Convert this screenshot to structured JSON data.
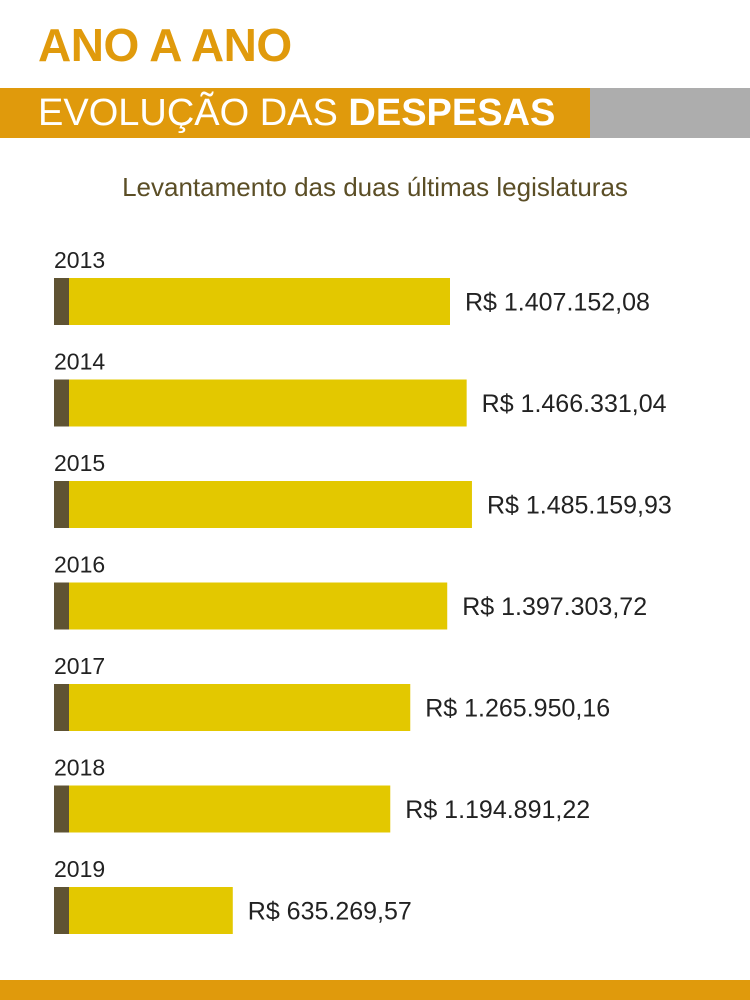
{
  "header": {
    "headline": "ANO A ANO",
    "banner_regular": "EVOLUÇÃO DAS ",
    "banner_bold": "DESPESAS"
  },
  "colors": {
    "headline": "#e09a0c",
    "banner_orange": "#e09a0c",
    "banner_grey": "#adadad",
    "subtitle": "#5b4e26",
    "bar_fill": "#e3c800",
    "bar_cap": "#5f5333",
    "label_text": "#222222",
    "footer": "#e09a0c"
  },
  "chart_data": {
    "type": "bar",
    "orientation": "horizontal",
    "title": "Levantamento das duas últimas legislaturas",
    "categories": [
      "2013",
      "2014",
      "2015",
      "2016",
      "2017",
      "2018",
      "2019"
    ],
    "values": [
      1407152.08,
      1466331.04,
      1485159.93,
      1397303.72,
      1265950.16,
      1194891.22,
      635269.57
    ],
    "value_labels": [
      "R$ 1.407.152,08",
      "R$ 1.466.331,04",
      "R$ 1.485.159,93",
      "R$ 1.397.303,72",
      "R$ 1.265.950,16",
      "R$ 1.194.891,22",
      "R$ 635.269,57"
    ],
    "xlim": [
      0,
      1500000
    ],
    "grid": false,
    "legend": "none"
  }
}
